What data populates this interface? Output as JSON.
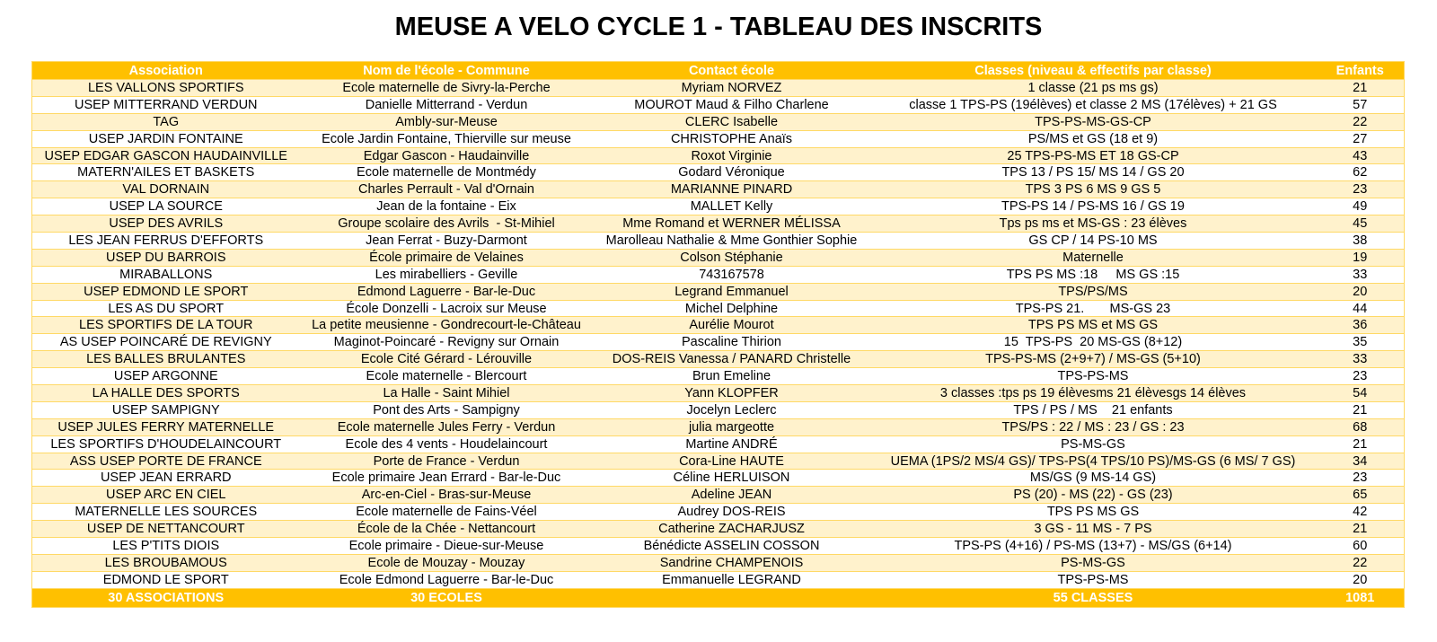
{
  "header": {
    "title": "MEUSE A VELO CYCLE 1 - TABLEAU DES INSCRITS"
  },
  "table": {
    "columns": [
      "Association",
      "Nom de l'école - Commune",
      "Contact école",
      "Classes (niveau & effectifs par classe)",
      "Enfants"
    ],
    "rows": [
      [
        "LES VALLONS SPORTIFS",
        "Ecole maternelle de Sivry-la-Perche",
        "Myriam NORVEZ",
        "1 classe (21 ps ms gs)",
        21
      ],
      [
        "USEP MITTERRAND VERDUN",
        "Danielle Mitterrand - Verdun",
        "MOUROT Maud & Filho Charlene",
        "classe 1 TPS-PS (19élèves) et classe 2 MS (17élèves) + 21 GS",
        57
      ],
      [
        "TAG",
        "Ambly-sur-Meuse",
        "CLERC Isabelle",
        "TPS-PS-MS-GS-CP",
        22
      ],
      [
        "USEP JARDIN FONTAINE",
        "Ecole Jardin Fontaine, Thierville sur meuse",
        "CHRISTOPHE Anaïs",
        "PS/MS et GS (18 et 9)",
        27
      ],
      [
        "USEP EDGAR GASCON HAUDAINVILLE",
        "Edgar Gascon - Haudainville",
        "Roxot Virginie",
        "25 TPS-PS-MS ET 18 GS-CP",
        43
      ],
      [
        "MATERN'AILES ET BASKETS",
        "Ecole maternelle de Montmédy",
        "Godard Véronique",
        "TPS 13 / PS 15/ MS 14 / GS 20",
        62
      ],
      [
        "VAL DORNAIN",
        "Charles Perrault - Val d'Ornain",
        "MARIANNE PINARD",
        "TPS 3 PS 6 MS 9 GS 5",
        23
      ],
      [
        "USEP LA SOURCE",
        "Jean de la fontaine - Eix",
        "MALLET Kelly",
        "TPS-PS 14 / PS-MS 16 / GS 19",
        49
      ],
      [
        "USEP DES AVRILS",
        "Groupe scolaire des Avrils  - St-Mihiel",
        "Mme Romand et WERNER MÉLISSA",
        "Tps ps ms et MS-GS : 23 élèves",
        45
      ],
      [
        "LES JEAN FERRUS D'EFFORTS",
        "Jean Ferrat - Buzy-Darmont",
        "Marolleau Nathalie & Mme Gonthier Sophie",
        "GS CP / 14 PS-10 MS",
        38
      ],
      [
        "USEP DU BARROIS",
        "École primaire de Velaines",
        "Colson Stéphanie",
        "Maternelle",
        19
      ],
      [
        "MIRABALLONS",
        "Les mirabelliers - Geville",
        "743167578",
        "TPS PS MS :18     MS GS :15",
        33
      ],
      [
        "USEP EDMOND LE SPORT",
        "Edmond Laguerre - Bar-le-Duc",
        "Legrand Emmanuel",
        "TPS/PS/MS",
        20
      ],
      [
        "LES AS DU SPORT",
        "École Donzelli - Lacroix sur Meuse",
        "Michel Delphine",
        "TPS-PS 21.       MS-GS 23",
        44
      ],
      [
        "LES SPORTIFS DE LA TOUR",
        "La petite meusienne - Gondrecourt-le-Château",
        "Aurélie Mourot",
        "TPS PS MS et MS GS",
        36
      ],
      [
        "AS USEP POINCARÉ DE REVIGNY",
        "Maginot-Poincaré - Revigny sur Ornain",
        "Pascaline Thirion",
        "15  TPS-PS  20 MS-GS (8+12)",
        35
      ],
      [
        "LES BALLES BRULANTES",
        "Ecole Cité Gérard - Lérouville",
        "DOS-REIS Vanessa / PANARD Christelle",
        "TPS-PS-MS (2+9+7) / MS-GS (5+10)",
        33
      ],
      [
        "USEP ARGONNE",
        "Ecole maternelle - Blercourt",
        "Brun Emeline",
        "TPS-PS-MS",
        23
      ],
      [
        "LA HALLE DES SPORTS",
        "La Halle - Saint Mihiel",
        "Yann KLOPFER",
        "3 classes :tps ps 19 élèvesms 21 élèvesgs 14 élèves",
        54
      ],
      [
        "USEP SAMPIGNY",
        "Pont des Arts - Sampigny",
        "Jocelyn Leclerc",
        "TPS / PS / MS    21 enfants",
        21
      ],
      [
        "USEP JULES FERRY MATERNELLE",
        "Ecole maternelle Jules Ferry - Verdun",
        "julia margeotte",
        "TPS/PS : 22 / MS : 23 / GS : 23",
        68
      ],
      [
        "LES SPORTIFS D'HOUDELAINCOURT",
        "Ecole des 4 vents - Houdelaincourt",
        "Martine ANDRÉ",
        "PS-MS-GS",
        21
      ],
      [
        "ASS USEP PORTE DE FRANCE",
        "Porte de France - Verdun",
        "Cora-Line HAUTE",
        "UEMA (1PS/2 MS/4 GS)/ TPS-PS(4 TPS/10 PS)/MS-GS (6 MS/ 7 GS)",
        34
      ],
      [
        "USEP JEAN ERRARD",
        "Ecole primaire Jean Errard - Bar-le-Duc",
        "Céline HERLUISON",
        "MS/GS (9 MS-14 GS)",
        23
      ],
      [
        "USEP ARC EN CIEL",
        "Arc-en-Ciel - Bras-sur-Meuse",
        "Adeline JEAN",
        "PS (20) - MS (22) - GS (23)",
        65
      ],
      [
        "MATERNELLE LES SOURCES",
        "Ecole maternelle de Fains-Véel",
        "Audrey DOS-REIS",
        "TPS PS MS GS",
        42
      ],
      [
        "USEP DE NETTANCOURT",
        "École de la Chée - Nettancourt",
        "Catherine ZACHARJUSZ",
        "3 GS - 11 MS - 7 PS",
        21
      ],
      [
        "LES P'TITS DIOIS",
        "Ecole primaire - Dieue-sur-Meuse",
        "Bénédicte ASSELIN COSSON",
        "TPS-PS (4+16) / PS-MS (13+7) - MS/GS (6+14)",
        60
      ],
      [
        "LES BROUBAMOUS",
        "Ecole de Mouzay - Mouzay",
        "Sandrine CHAMPENOIS",
        "PS-MS-GS",
        22
      ],
      [
        "EDMOND LE SPORT",
        "Ecole Edmond Laguerre - Bar-le-Duc",
        "Emmanuelle LEGRAND",
        "TPS-PS-MS",
        20
      ]
    ],
    "footer": {
      "association": "30 ASSOCIATIONS",
      "ecole": "30 ECOLES",
      "classes": "55 CLASSES",
      "enfants": 1081
    }
  }
}
